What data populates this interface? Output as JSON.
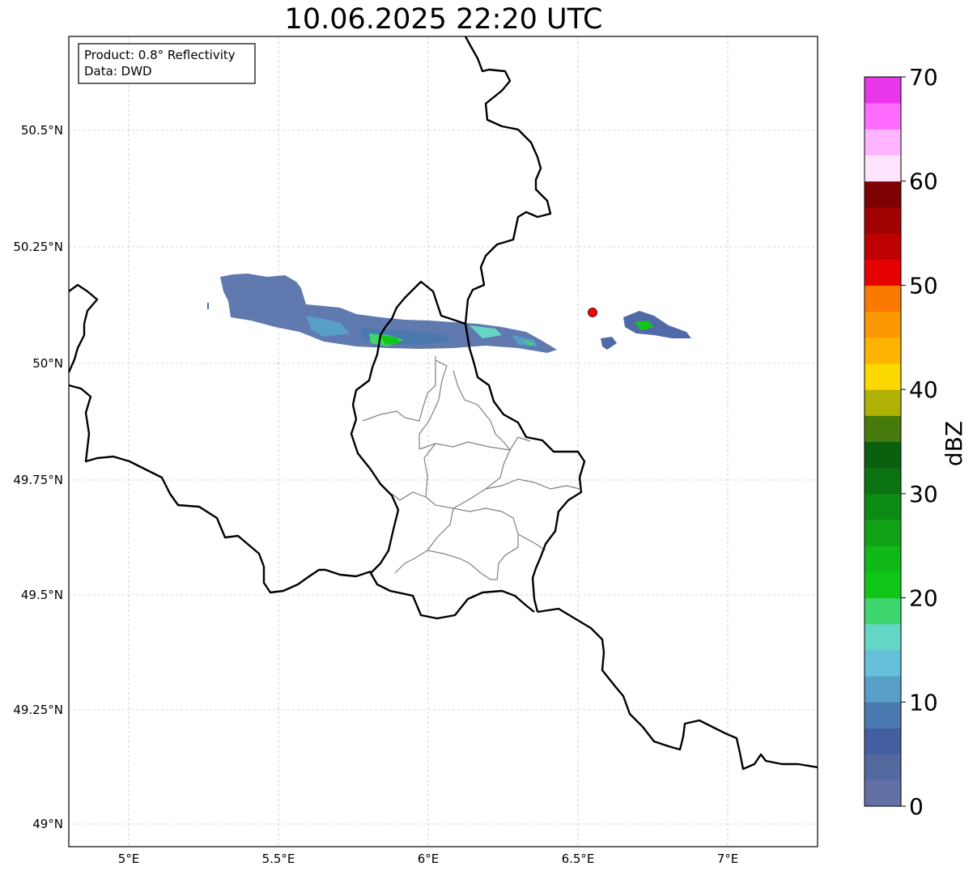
{
  "title": "10.06.2025 22:20 UTC",
  "info_box": {
    "line1": "Product: 0.8° Reflectivity",
    "line2": "Data: DWD"
  },
  "axes": {
    "lon_labels": [
      "5°E",
      "5.5°E",
      "6°E",
      "6.5°E",
      "7°E"
    ],
    "lat_labels": [
      "50.5°N",
      "50.25°N",
      "50°N",
      "49.75°N",
      "49.5°N",
      "49.25°N",
      "49°N"
    ]
  },
  "colorbar": {
    "label": "dBZ",
    "ticks": [
      "0",
      "10",
      "20",
      "30",
      "40",
      "50",
      "60",
      "70"
    ],
    "colors": [
      "#6370a6",
      "#5468a0",
      "#445ea2",
      "#4a79b0",
      "#579fc6",
      "#65c0dc",
      "#63d6c5",
      "#3dd66e",
      "#10c718",
      "#10b818",
      "#10a214",
      "#0d8a14",
      "#0c7313",
      "#0a600f",
      "#477a0c",
      "#afb205",
      "#fcd801",
      "#fcb401",
      "#fc9801",
      "#fc7901",
      "#e60101",
      "#c00101",
      "#a00101",
      "#7d0101",
      "#ffe4ff",
      "#ffb4ff",
      "#ff6cff",
      "#ea36ea"
    ]
  },
  "marker": {
    "name": "radar-site",
    "color": "#ff0000"
  }
}
